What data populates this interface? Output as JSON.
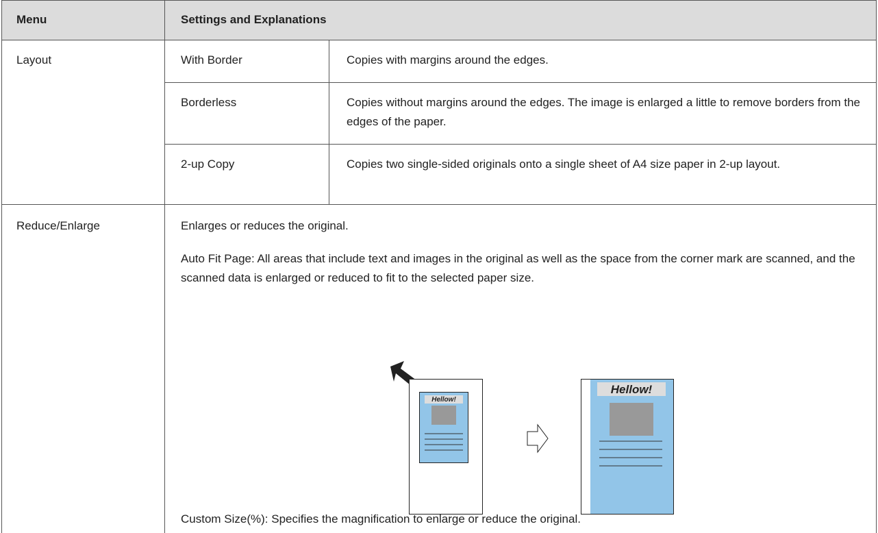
{
  "table": {
    "header": [
      "Menu",
      "Settings and Explanations"
    ],
    "layout": {
      "menu": "Layout",
      "options": [
        {
          "name": "With Border",
          "description": "Copies with margins around the edges."
        },
        {
          "name": "Borderless",
          "description": "Copies without margins around the edges. The image is enlarged a little to remove borders from the edges of the paper."
        },
        {
          "name": "2-up Copy",
          "description": "Copies two single-sided originals onto a single sheet of A4 size paper in 2-up layout."
        }
      ]
    },
    "reduce_enlarge": {
      "menu": "Reduce/Enlarge",
      "paragraphs": [
        "Enlarges or reduces the original.",
        "Auto Fit Page: All areas that include text and images in the original as well as the space from the corner mark are scanned, and the scanned data is enlarged or reduced to fit to the selected paper size."
      ],
      "illustration": {
        "before_label": "Hellow!",
        "after_label": "Hellow!"
      },
      "footer": "Custom Size(%): Specifies the magnification to enlarge or reduce the original."
    }
  }
}
